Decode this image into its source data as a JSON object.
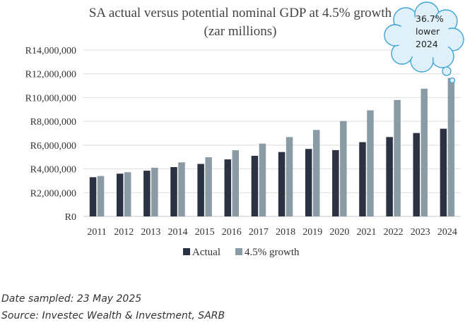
{
  "chart_data": {
    "type": "bar",
    "title": "SA actual versus potential nominal GDP at 4.5% growth",
    "subtitle": "(zar millions)",
    "categories": [
      "2011",
      "2012",
      "2013",
      "2014",
      "2015",
      "2016",
      "2017",
      "2018",
      "2019",
      "2020",
      "2021",
      "2022",
      "2023",
      "2024"
    ],
    "series": [
      {
        "name": "Actual",
        "color": "#2b3242",
        "values": [
          3300000,
          3600000,
          3850000,
          4150000,
          4420000,
          4800000,
          5100000,
          5420000,
          5680000,
          5580000,
          6250000,
          6680000,
          7020000,
          7380000
        ]
      },
      {
        "name": "4.5% growth",
        "color": "#8a9ba6",
        "values": [
          3400000,
          3720000,
          4100000,
          4550000,
          4980000,
          5570000,
          6130000,
          6680000,
          7280000,
          8030000,
          8930000,
          9800000,
          10750000,
          11650000
        ]
      }
    ],
    "ylim": [
      0,
      14000000
    ],
    "yticks": [
      "R0",
      "R2,000,000",
      "R4,000,000",
      "R6,000,000",
      "R8,000,000",
      "R10,000,000",
      "R12,000,000",
      "R14,000,000"
    ],
    "grid": true,
    "legend": "bottom",
    "annotation": {
      "line1": "36.7%",
      "line2": "lower",
      "line3": "2024"
    }
  },
  "footnotes": {
    "date": "Date sampled: 23 May 2025",
    "source": "Source: Investec Wealth & Investment, SARB"
  }
}
